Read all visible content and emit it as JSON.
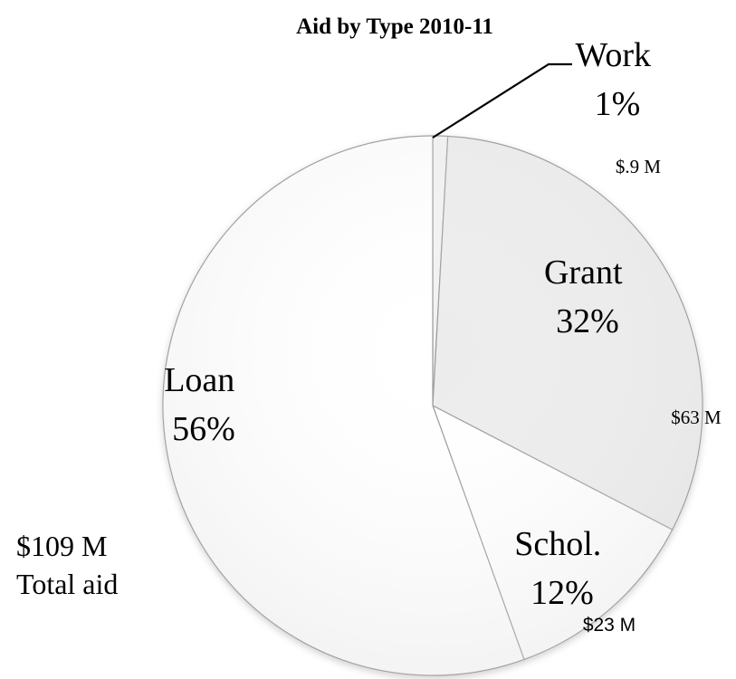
{
  "chart_data": {
    "type": "pie",
    "title": "Aid by Type 2010-11",
    "slices": [
      {
        "category": "Work",
        "percent_label": "1%",
        "amount_label": "$.9 M",
        "value": 0.9,
        "color": "#f2f2f2"
      },
      {
        "category": "Grant",
        "percent_label": "32%",
        "amount_label": "$63 M",
        "value": 32,
        "color": "#ececec"
      },
      {
        "category": "Schol.",
        "percent_label": "12%",
        "amount_label": "$23 M",
        "value": 12,
        "color": "#ffffff"
      },
      {
        "category": "Loan",
        "percent_label": "56%",
        "amount_label": "",
        "value": 56,
        "color": "#ffffff"
      }
    ],
    "total_note": {
      "line1": "$109 M",
      "line2": "Total aid"
    }
  }
}
